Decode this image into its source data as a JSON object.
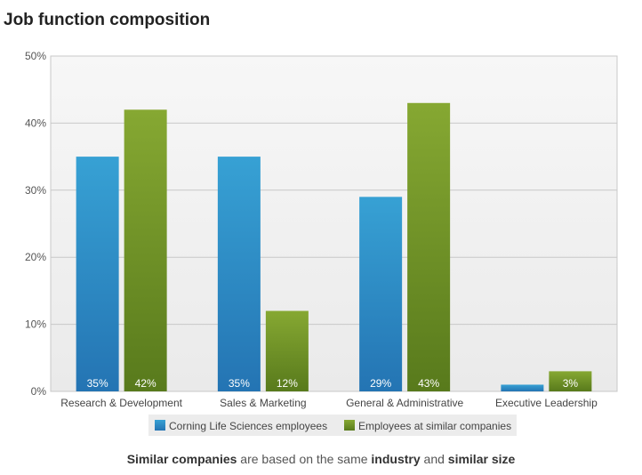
{
  "title": "Job function composition",
  "chart_data": {
    "type": "bar",
    "categories": [
      "Research & Development",
      "Sales & Marketing",
      "General & Administrative",
      "Executive Leadership"
    ],
    "series": [
      {
        "name": "Corning Life Sciences employees",
        "values": [
          35,
          35,
          29,
          1
        ],
        "labels": [
          "35%",
          "35%",
          "29%",
          ""
        ],
        "color": "#2d8fc8"
      },
      {
        "name": "Employees at similar companies",
        "values": [
          42,
          12,
          43,
          3
        ],
        "labels": [
          "42%",
          "12%",
          "43%",
          "3%"
        ],
        "color": "#7a9a2a"
      }
    ],
    "ylim": [
      0,
      50
    ],
    "yticks": [
      0,
      10,
      20,
      30,
      40,
      50
    ],
    "ytick_labels": [
      "0%",
      "10%",
      "20%",
      "30%",
      "40%",
      "50%"
    ],
    "grid": true,
    "legend_position": "bottom"
  },
  "footnote": {
    "part1": "Similar companies",
    "part2": " are based on the same ",
    "part3": "industry",
    "part4": " and ",
    "part5": "similar size"
  }
}
